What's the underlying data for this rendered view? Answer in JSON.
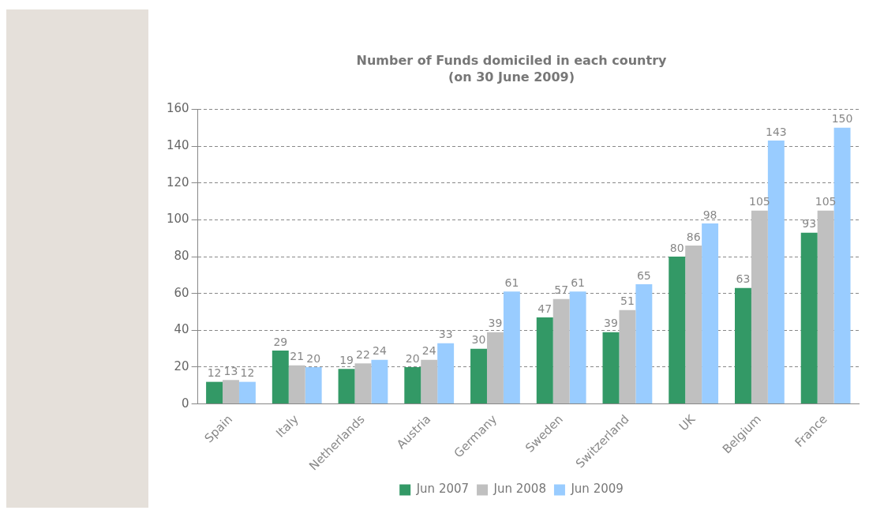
{
  "chart_data": {
    "type": "bar",
    "title": "Number of Funds domiciled in each country",
    "subtitle": "(on 30 June 2009)",
    "categories": [
      "Spain",
      "Italy",
      "Netherlands",
      "Austria",
      "Germany",
      "Sweden",
      "Switzerland",
      "UK",
      "Belgium",
      "France"
    ],
    "series": [
      {
        "name": "Jun 2007",
        "color": "#339966",
        "values": [
          12,
          29,
          19,
          20,
          30,
          47,
          39,
          80,
          63,
          93
        ]
      },
      {
        "name": "Jun 2008",
        "color": "#c0c0c0",
        "values": [
          13,
          21,
          22,
          24,
          39,
          57,
          51,
          86,
          105,
          105
        ]
      },
      {
        "name": "Jun 2009",
        "color": "#99ccff",
        "values": [
          12,
          20,
          24,
          33,
          61,
          61,
          65,
          98,
          143,
          150
        ]
      }
    ],
    "ylim": [
      0,
      160
    ],
    "yticks": [
      0,
      20,
      40,
      60,
      80,
      100,
      120,
      140,
      160
    ],
    "grid": "y",
    "legend": "bottom",
    "data_labels": true
  }
}
